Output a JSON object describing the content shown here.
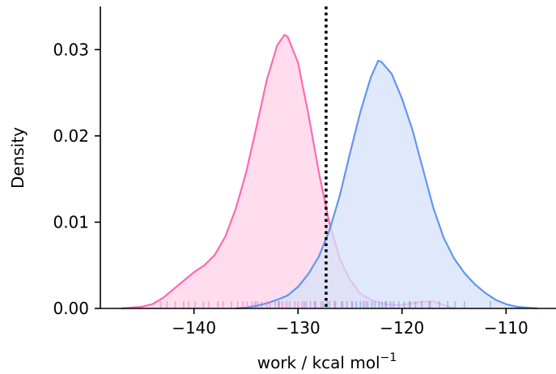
{
  "chart_data": {
    "type": "area",
    "xlabel": "work / kcal mol",
    "xlabel_superscript": "−1",
    "ylabel": "Density",
    "xlim": [
      -149,
      -105.2
    ],
    "ylim": [
      0,
      0.035
    ],
    "xticks": [
      -140,
      -130,
      -120,
      -110
    ],
    "xtick_labels": [
      "−140",
      "−130",
      "−120",
      "−110"
    ],
    "yticks": [
      0.0,
      0.01,
      0.02,
      0.03
    ],
    "ytick_labels": [
      "0.00",
      "0.01",
      "0.02",
      "0.03"
    ],
    "grid": false,
    "legend": "none",
    "vline": {
      "x": -127.3,
      "style": "dotted",
      "color": "#000000"
    },
    "series": [
      {
        "color": "#ff69b4",
        "fill_color": "#ffd1e6",
        "x": [
          -147,
          -146,
          -145,
          -144,
          -143,
          -142,
          -141,
          -140,
          -139,
          -138,
          -137,
          -136,
          -135,
          -134,
          -133,
          -132,
          -131.3,
          -131,
          -130,
          -129,
          -128,
          -127,
          -126,
          -125,
          -124,
          -123,
          -122,
          -121,
          -120,
          -119,
          -118,
          -117,
          -116,
          -115
        ],
        "values": [
          0.0,
          0.0001,
          0.0002,
          0.0005,
          0.0012,
          0.0022,
          0.0032,
          0.0042,
          0.005,
          0.0062,
          0.0083,
          0.0115,
          0.0157,
          0.021,
          0.0265,
          0.0305,
          0.0317,
          0.0315,
          0.0285,
          0.0225,
          0.0158,
          0.01,
          0.0058,
          0.0033,
          0.0017,
          0.001,
          0.0006,
          0.0004,
          0.0004,
          0.0006,
          0.0008,
          0.0008,
          0.0004,
          0.0
        ],
        "rug": [
          -143.2,
          -142.6,
          -141.8,
          -141.0,
          -140.5,
          -139.9,
          -139.1,
          -138.6,
          -137.7,
          -137.2,
          -136.4,
          -135.8,
          -135.3,
          -134.9,
          -134.4,
          -133.9,
          -133.5,
          -133.0,
          -132.7,
          -132.2,
          -131.9,
          -131.5,
          -131.1,
          -130.8,
          -130.3,
          -130.0,
          -129.6,
          -129.2,
          -128.8,
          -128.3,
          -127.8,
          -127.2,
          -126.5,
          -125.7,
          -124.8,
          -123.5,
          -121.6,
          -119.2,
          -117.4
        ]
      },
      {
        "color": "#6495ed",
        "fill_color": "#d6e2f9",
        "x": [
          -136,
          -135,
          -134,
          -133,
          -132,
          -131,
          -130,
          -129,
          -128,
          -127,
          -126,
          -125,
          -124,
          -123,
          -122.3,
          -122,
          -121,
          -120,
          -119,
          -118,
          -117,
          -116,
          -115,
          -114,
          -113,
          -112,
          -111,
          -110,
          -109,
          -108,
          -107
        ],
        "values": [
          0.0,
          0.0001,
          0.0003,
          0.0006,
          0.001,
          0.0015,
          0.0025,
          0.004,
          0.006,
          0.009,
          0.013,
          0.018,
          0.0228,
          0.0268,
          0.0287,
          0.0286,
          0.0272,
          0.0243,
          0.0207,
          0.0162,
          0.0117,
          0.0082,
          0.0058,
          0.0041,
          0.0028,
          0.0018,
          0.001,
          0.0005,
          0.0002,
          0.0001,
          0.0
        ],
        "rug": [
          -134.1,
          -131.8,
          -129.4,
          -128.4,
          -127.6,
          -127.0,
          -126.4,
          -125.8,
          -125.3,
          -124.8,
          -124.4,
          -124.0,
          -123.7,
          -123.3,
          -122.9,
          -122.6,
          -122.2,
          -121.9,
          -121.5,
          -121.1,
          -120.8,
          -120.3,
          -119.8,
          -119.3,
          -118.7,
          -118.1,
          -117.3,
          -116.4,
          -115.6,
          -114.9,
          -114.0,
          -111.5
        ]
      }
    ]
  }
}
